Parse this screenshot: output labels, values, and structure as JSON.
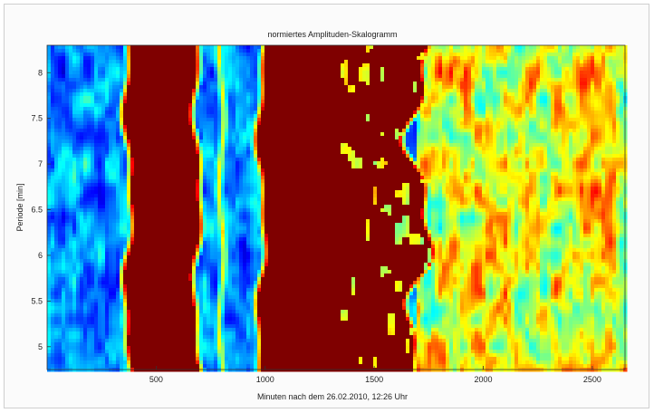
{
  "chart_data": {
    "type": "heatmap",
    "title": "normiertes Amplituden-Skalogramm",
    "xlabel": "Minuten nach dem 26.02.2010, 12:26 Uhr",
    "ylabel": "Periode [min]",
    "xlim": [
      0,
      2650
    ],
    "ylim": [
      4.75,
      8.3
    ],
    "x_ticks": [
      500,
      1000,
      1500,
      2000,
      2500
    ],
    "y_ticks": [
      5,
      5.5,
      6,
      6.5,
      7,
      7.5,
      8
    ],
    "colormap": "jet",
    "color_range": [
      0,
      1
    ],
    "saturated_bands": [
      {
        "x_start": 380,
        "x_end": 680,
        "note": "value 1.0"
      },
      {
        "x_start": 990,
        "x_end": 1700,
        "note": "value 1.0, fragmented toward higher x"
      }
    ],
    "background_level": "low (0.1–0.4), patchy",
    "high_region": {
      "x_start": 1700,
      "x_end": 2650,
      "level": "medium-high (0.5–0.9), patchy"
    }
  },
  "colors": {
    "saturated": "#7f0000",
    "high": "#ff2a00",
    "mid": "#ffd700",
    "low_mid": "#3ec6ee",
    "low": "#1a3aa8",
    "min": "#00008f"
  }
}
